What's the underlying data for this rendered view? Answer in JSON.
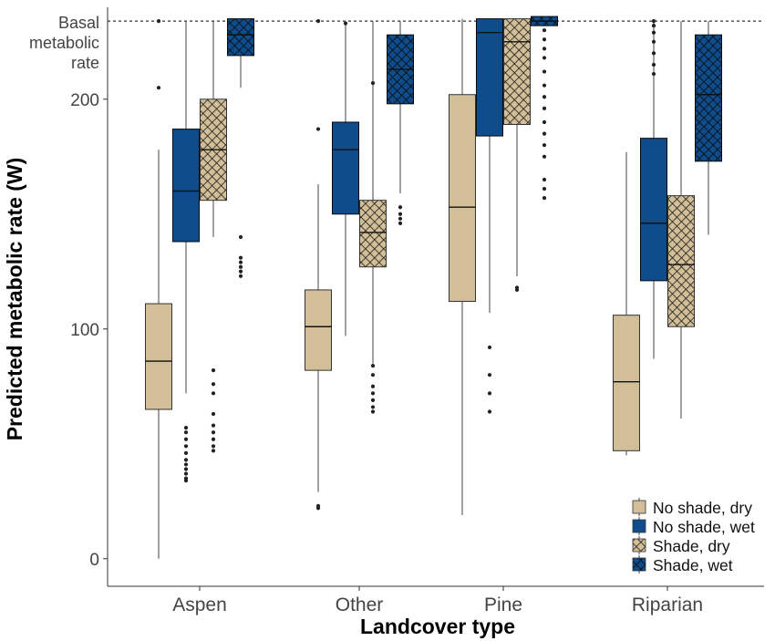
{
  "chart_data": {
    "type": "boxplot",
    "xlabel": "Landcover type",
    "ylabel": "Predicted metabolic rate (W)",
    "categories": [
      "Aspen",
      "Other",
      "Pine",
      "Riparian"
    ],
    "ylim": [
      -12,
      240
    ],
    "yticks": [
      0,
      100,
      200
    ],
    "reference_line": {
      "value": 234,
      "label_lines": [
        "Basal",
        "metabolic",
        "rate"
      ],
      "style": "dotted"
    },
    "legend_position": "bottom-right",
    "grid": false,
    "series": [
      {
        "name": "No shade, dry",
        "color": "#d2bf97",
        "pattern": "none",
        "boxes": [
          {
            "category": "Aspen",
            "min": 0,
            "q1": 65,
            "median": 86,
            "q3": 111,
            "max": 178,
            "outliers": [
              205,
              234
            ]
          },
          {
            "category": "Other",
            "min": 29,
            "q1": 82,
            "median": 101,
            "q3": 117,
            "max": 163,
            "outliers": [
              22,
              23,
              187,
              234
            ]
          },
          {
            "category": "Pine",
            "min": 19,
            "q1": 112,
            "median": 153,
            "q3": 202,
            "max": 235,
            "outliers": []
          },
          {
            "category": "Riparian",
            "min": 45,
            "q1": 47,
            "median": 77,
            "q3": 106,
            "max": 177,
            "outliers": []
          }
        ]
      },
      {
        "name": "No shade, wet",
        "color": "#0e4c8c",
        "pattern": "none",
        "boxes": [
          {
            "category": "Aspen",
            "min": 72,
            "q1": 138,
            "median": 160,
            "q3": 187,
            "max": 234,
            "outliers": [
              34,
              35,
              37,
              39,
              41,
              43,
              46,
              49,
              52,
              55,
              57
            ]
          },
          {
            "category": "Other",
            "min": 97,
            "q1": 150,
            "median": 178,
            "q3": 190,
            "max": 234,
            "outliers": [
              233
            ]
          },
          {
            "category": "Pine",
            "min": 107,
            "q1": 184,
            "median": 229,
            "q3": 235,
            "max": 235,
            "outliers": [
              64,
              72,
              80,
              92
            ]
          },
          {
            "category": "Riparian",
            "min": 87,
            "q1": 121,
            "median": 146,
            "q3": 183,
            "max": 234,
            "outliers": [
              211,
              215,
              220,
              225,
              229,
              232,
              234
            ]
          }
        ]
      },
      {
        "name": "Shade, dry",
        "color": "#d2bf97",
        "pattern": "crosshatch",
        "boxes": [
          {
            "category": "Aspen",
            "min": 140,
            "q1": 156,
            "median": 178,
            "q3": 200,
            "max": 234,
            "outliers": [
              47,
              49,
              52,
              55,
              58,
              63,
              72,
              76,
              82
            ]
          },
          {
            "category": "Other",
            "min": 85,
            "q1": 127,
            "median": 142,
            "q3": 156,
            "max": 234,
            "outliers": [
              64,
              66,
              69,
              72,
              75,
              80,
              84,
              207
            ]
          },
          {
            "category": "Pine",
            "min": 123,
            "q1": 189,
            "median": 225,
            "q3": 235,
            "max": 235,
            "outliers": [
              117,
              118
            ]
          },
          {
            "category": "Riparian",
            "min": 61,
            "q1": 101,
            "median": 128,
            "q3": 158,
            "max": 234,
            "outliers": []
          }
        ]
      },
      {
        "name": "Shade, wet",
        "color": "#0e4c8c",
        "pattern": "crosshatch",
        "boxes": [
          {
            "category": "Aspen",
            "min": 205,
            "q1": 219,
            "median": 228,
            "q3": 235,
            "max": 235,
            "outliers": [
              123,
              125,
              127,
              129,
              131,
              140
            ]
          },
          {
            "category": "Other",
            "min": 159,
            "q1": 198,
            "median": 213,
            "q3": 228,
            "max": 234,
            "outliers": [
              146,
              148,
              150,
              153
            ]
          },
          {
            "category": "Pine",
            "min": 232,
            "q1": 232,
            "median": 234,
            "q3": 236,
            "max": 236,
            "outliers": [
              157,
              161,
              165,
              175,
              180,
              185,
              190,
              196,
              201,
              206,
              212,
              218,
              222,
              226,
              230
            ]
          },
          {
            "category": "Riparian",
            "min": 141,
            "q1": 173,
            "median": 202,
            "q3": 228,
            "max": 234,
            "outliers": []
          }
        ]
      }
    ]
  }
}
